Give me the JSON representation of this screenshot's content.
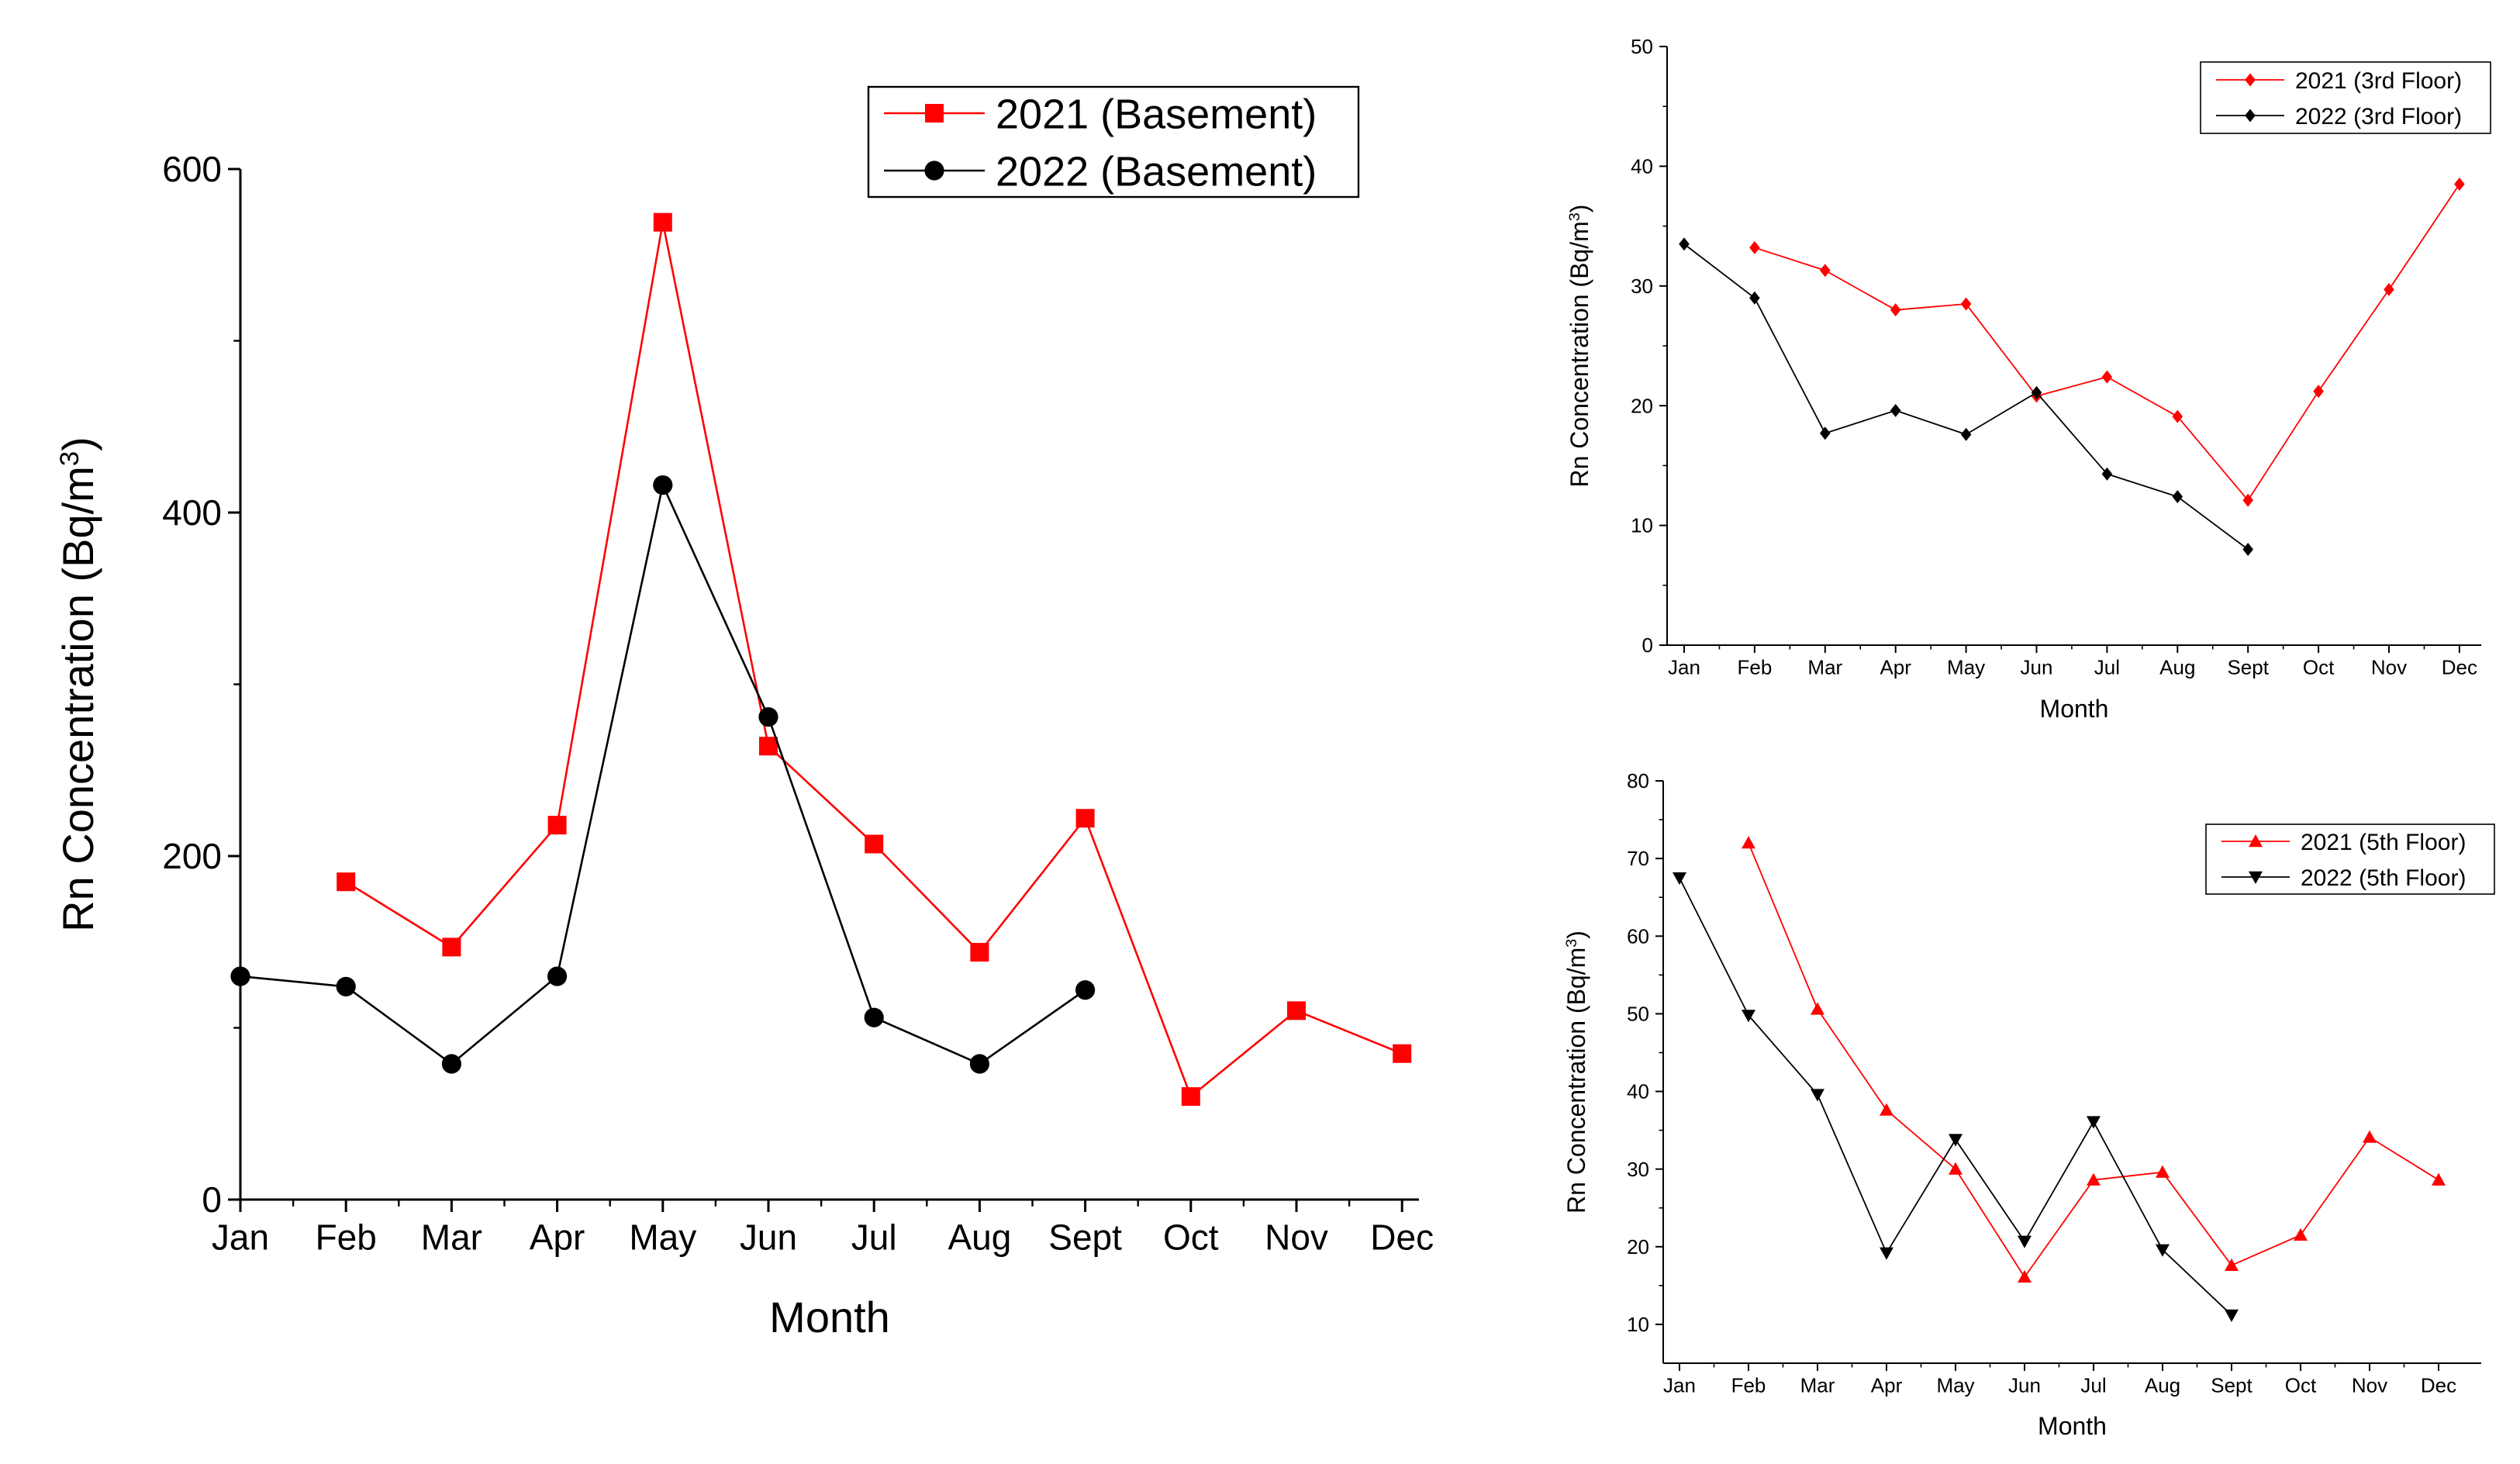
{
  "chart_data": [
    {
      "id": "basement",
      "type": "line",
      "title": "",
      "xlabel": "Month",
      "ylabel": "Rn Concentration (Bq/m",
      "ylabel_sup": "3",
      "ylabel_close": ")",
      "categories": [
        "Jan",
        "Feb",
        "Mar",
        "Apr",
        "May",
        "Jun",
        "Jul",
        "Aug",
        "Sept",
        "Oct",
        "Nov",
        "Dec"
      ],
      "ylim": [
        0,
        600
      ],
      "yticks": [
        0,
        200,
        400,
        600
      ],
      "legend_position": "top-right",
      "series": [
        {
          "name": "2021 (Basement)",
          "color": "#ff0000",
          "marker": "square",
          "values": [
            null,
            185,
            147,
            218,
            569,
            264,
            207,
            144,
            222,
            60,
            110,
            85
          ]
        },
        {
          "name": "2022 (Basement)",
          "color": "#000000",
          "marker": "circle",
          "values": [
            130,
            124,
            79,
            130,
            416,
            281,
            106,
            79,
            122,
            null,
            null,
            null
          ]
        }
      ]
    },
    {
      "id": "third-floor",
      "type": "line",
      "title": "",
      "xlabel": "Month",
      "ylabel": "Rn Concentration (Bq/m",
      "ylabel_sup": "3",
      "ylabel_close": ")",
      "categories": [
        "Jan",
        "Feb",
        "Mar",
        "Apr",
        "May",
        "Jun",
        "Jul",
        "Aug",
        "Sept",
        "Oct",
        "Nov",
        "Dec"
      ],
      "ylim": [
        0,
        50
      ],
      "yticks": [
        0,
        10,
        20,
        30,
        40,
        50
      ],
      "legend_position": "top-right",
      "series": [
        {
          "name": "2021 (3rd Floor)",
          "color": "#ff0000",
          "marker": "diamond",
          "values": [
            null,
            33.2,
            31.3,
            28.0,
            28.5,
            20.8,
            22.4,
            19.1,
            12.1,
            21.2,
            29.7,
            38.5
          ]
        },
        {
          "name": "2022 (3rd Floor)",
          "color": "#000000",
          "marker": "diamond",
          "values": [
            33.5,
            29.0,
            17.7,
            19.6,
            17.6,
            21.1,
            14.3,
            12.4,
            8.0,
            null,
            null,
            null
          ]
        }
      ]
    },
    {
      "id": "fifth-floor",
      "type": "line",
      "title": "",
      "xlabel": "Month",
      "ylabel": "Rn Concentration (Bq/m",
      "ylabel_sup": "3",
      "ylabel_close": ")",
      "categories": [
        "Jan",
        "Feb",
        "Mar",
        "Apr",
        "May",
        "Jun",
        "Jul",
        "Aug",
        "Sept",
        "Oct",
        "Nov",
        "Dec"
      ],
      "ylim": [
        5,
        80
      ],
      "yticks": [
        10,
        20,
        30,
        40,
        50,
        60,
        70,
        80
      ],
      "legend_position": "top-right",
      "series": [
        {
          "name": "2021 (5th Floor)",
          "color": "#ff0000",
          "marker": "triangle-up",
          "values": [
            null,
            72.0,
            50.6,
            37.6,
            30.0,
            16.1,
            28.6,
            29.6,
            17.6,
            21.5,
            34.1,
            28.6
          ]
        },
        {
          "name": "2022 (5th Floor)",
          "color": "#000000",
          "marker": "triangle-down",
          "values": [
            67.5,
            49.8,
            39.6,
            19.2,
            33.8,
            20.7,
            36.1,
            19.6,
            11.2,
            null,
            null,
            null
          ]
        }
      ]
    }
  ]
}
